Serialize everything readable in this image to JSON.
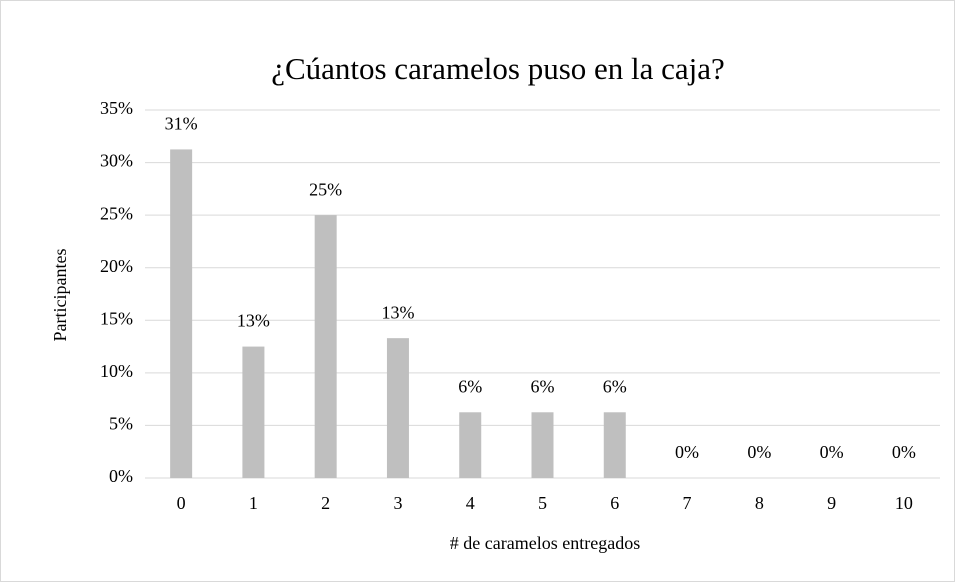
{
  "chart_data": {
    "type": "bar",
    "title": "¿Cúantos caramelos puso en la caja?",
    "x_label": "# de caramelos entregados",
    "y_label": "Participantes",
    "categories": [
      "0",
      "1",
      "2",
      "3",
      "4",
      "5",
      "6",
      "7",
      "8",
      "9",
      "10"
    ],
    "values": [
      31.25,
      12.5,
      25,
      13.3,
      6.25,
      6.25,
      6.25,
      0,
      0,
      0,
      0
    ],
    "value_labels": [
      "31%",
      "13%",
      "25%",
      "13%",
      "6%",
      "6%",
      "6%",
      "0%",
      "0%",
      "0%",
      "0%"
    ],
    "color": "#bfbfbf",
    "ylim": [
      0,
      35
    ],
    "yticks": [
      {
        "value": 0,
        "label": "0%"
      },
      {
        "value": 5,
        "label": "5%"
      },
      {
        "value": 10,
        "label": "10%"
      },
      {
        "value": 15,
        "label": "15%"
      },
      {
        "value": 20,
        "label": "20%"
      },
      {
        "value": 25,
        "label": "25%"
      },
      {
        "value": 30,
        "label": "30%"
      },
      {
        "value": 35,
        "label": "35%"
      }
    ],
    "grid": true
  }
}
